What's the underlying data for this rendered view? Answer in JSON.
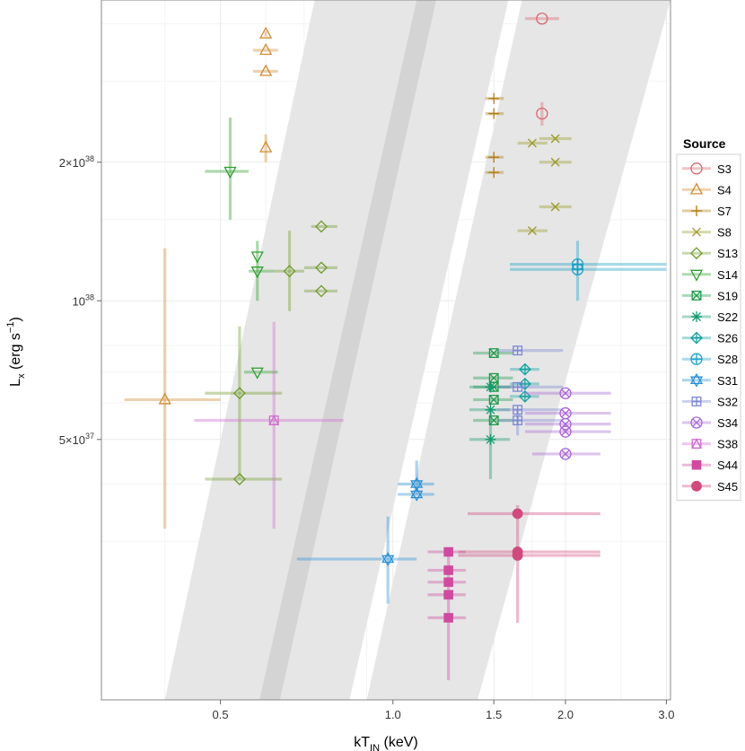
{
  "chart_data": {
    "type": "scatter",
    "title": "",
    "xlabel": {
      "main": "kT",
      "sub": "IN",
      "rest": " (keV)"
    },
    "ylabel": {
      "main": "L",
      "sub": "x",
      "rest": " (erg s",
      "sup": "−1",
      "close": ")"
    },
    "x_scale": "log",
    "y_scale": "log",
    "xlim": [
      0.31,
      3.05
    ],
    "ylim": [
      1.36e+37,
      4.5e+38
    ],
    "x_ticks": [
      {
        "value": 0.5,
        "label": "0.5"
      },
      {
        "value": 1.0,
        "label": "1.0"
      },
      {
        "value": 1.5,
        "label": "1.5"
      },
      {
        "value": 2.0,
        "label": "2.0"
      },
      {
        "value": 3.0,
        "label": "3.0"
      }
    ],
    "y_ticks": [
      {
        "value": 5e+37,
        "label": "5×10",
        "exp": "37"
      },
      {
        "value": 1e+38,
        "label": "10",
        "exp": "38"
      },
      {
        "value": 2e+38,
        "label": "2×10",
        "exp": "38"
      }
    ],
    "legend": {
      "title": "Source",
      "position": "right"
    },
    "bands": [
      {
        "name": "band-left-wide",
        "color": "#e6e6e6",
        "polygon": [
          [
            0.4,
            1.36e+37
          ],
          [
            0.84,
            1.36e+37
          ],
          [
            1.59,
            4.5e+38
          ],
          [
            0.73,
            4.5e+38
          ]
        ]
      },
      {
        "name": "band-left-dark",
        "color": "#d4d4d4",
        "polygon": [
          [
            0.585,
            1.36e+37
          ],
          [
            0.635,
            1.36e+37
          ],
          [
            1.19,
            4.5e+38
          ],
          [
            1.1,
            4.5e+38
          ]
        ]
      },
      {
        "name": "band-right-wide",
        "color": "#e6e6e6",
        "polygon": [
          [
            0.9,
            1.36e+37
          ],
          [
            1.405,
            1.36e+37
          ],
          [
            3.05,
            4.5e+38
          ],
          [
            1.68,
            4.5e+38
          ]
        ]
      }
    ],
    "series": [
      {
        "name": "S3",
        "color": "#d9656e",
        "marker": "circle",
        "points": [
          {
            "x": 1.82,
            "y": 4.1e+38,
            "xlo": 1.7,
            "xhi": 1.95,
            "ylo": 4.1e+38,
            "yhi": 4.1e+38
          },
          {
            "x": 1.82,
            "y": 2.55e+38,
            "xlo": 1.82,
            "xhi": 1.82,
            "ylo": 2.4e+38,
            "yhi": 2.7e+38
          }
        ]
      },
      {
        "name": "S4",
        "color": "#d08b30",
        "marker": "triangle-up",
        "points": [
          {
            "x": 0.6,
            "y": 3.8e+38,
            "xlo": 0.6,
            "xhi": 0.6,
            "ylo": 3.75e+38,
            "yhi": 3.85e+38
          },
          {
            "x": 0.6,
            "y": 3.5e+38,
            "xlo": 0.57,
            "xhi": 0.63,
            "ylo": 3.5e+38,
            "yhi": 3.5e+38
          },
          {
            "x": 0.6,
            "y": 3.15e+38,
            "xlo": 0.57,
            "xhi": 0.63,
            "ylo": 3.15e+38,
            "yhi": 3.15e+38
          },
          {
            "x": 0.6,
            "y": 2.15e+38,
            "xlo": 0.6,
            "xhi": 0.6,
            "ylo": 2e+38,
            "yhi": 2.3e+38
          },
          {
            "x": 0.4,
            "y": 6.1e+37,
            "xlo": 0.34,
            "xhi": 0.5,
            "ylo": 3.2e+37,
            "yhi": 1.3e+38
          }
        ]
      },
      {
        "name": "S7",
        "color": "#b07c14",
        "marker": "plus",
        "points": [
          {
            "x": 1.5,
            "y": 2.75e+38,
            "xlo": 1.45,
            "xhi": 1.56,
            "ylo": 2.75e+38,
            "yhi": 2.75e+38
          },
          {
            "x": 1.5,
            "y": 2.55e+38,
            "xlo": 1.45,
            "xhi": 1.56,
            "ylo": 2.55e+38,
            "yhi": 2.55e+38
          },
          {
            "x": 1.5,
            "y": 2.05e+38,
            "xlo": 1.45,
            "xhi": 1.56,
            "ylo": 2.05e+38,
            "yhi": 2.05e+38
          },
          {
            "x": 1.5,
            "y": 1.9e+38,
            "xlo": 1.45,
            "xhi": 1.56,
            "ylo": 1.9e+38,
            "yhi": 1.9e+38
          }
        ]
      },
      {
        "name": "S8",
        "color": "#9a9a26",
        "marker": "cross",
        "points": [
          {
            "x": 1.75,
            "y": 2.2e+38,
            "xlo": 1.65,
            "xhi": 1.86,
            "ylo": 2.2e+38,
            "yhi": 2.2e+38
          },
          {
            "x": 1.92,
            "y": 2.25e+38,
            "xlo": 1.8,
            "xhi": 2.05,
            "ylo": 2.25e+38,
            "yhi": 2.25e+38
          },
          {
            "x": 1.92,
            "y": 2e+38,
            "xlo": 1.8,
            "xhi": 2.05,
            "ylo": 2e+38,
            "yhi": 2e+38
          },
          {
            "x": 1.92,
            "y": 1.6e+38,
            "xlo": 1.8,
            "xhi": 2.05,
            "ylo": 1.6e+38,
            "yhi": 1.6e+38
          },
          {
            "x": 1.75,
            "y": 1.42e+38,
            "xlo": 1.65,
            "xhi": 1.86,
            "ylo": 1.42e+38,
            "yhi": 1.42e+38
          }
        ]
      },
      {
        "name": "S13",
        "color": "#6f9a2a",
        "marker": "diamond",
        "points": [
          {
            "x": 0.75,
            "y": 1.45e+38,
            "xlo": 0.72,
            "xhi": 0.8,
            "ylo": 1.45e+38,
            "yhi": 1.45e+38
          },
          {
            "x": 0.75,
            "y": 1.18e+38,
            "xlo": 0.7,
            "xhi": 0.8,
            "ylo": 1.18e+38,
            "yhi": 1.18e+38
          },
          {
            "x": 0.66,
            "y": 1.16e+38,
            "xlo": 0.62,
            "xhi": 0.7,
            "ylo": 9.5e+37,
            "yhi": 1.42e+38
          },
          {
            "x": 0.75,
            "y": 1.05e+38,
            "xlo": 0.7,
            "xhi": 0.8,
            "ylo": 1.05e+38,
            "yhi": 1.05e+38
          },
          {
            "x": 0.54,
            "y": 6.3e+37,
            "xlo": 0.47,
            "xhi": 0.64,
            "ylo": 4.1e+37,
            "yhi": 8.8e+37
          },
          {
            "x": 0.54,
            "y": 4.1e+37,
            "xlo": 0.47,
            "xhi": 0.64,
            "ylo": 4.1e+37,
            "yhi": 4.1e+37
          }
        ]
      },
      {
        "name": "S14",
        "color": "#2e9e2e",
        "marker": "triangle-down",
        "points": [
          {
            "x": 0.52,
            "y": 1.91e+38,
            "xlo": 0.47,
            "xhi": 0.56,
            "ylo": 1.5e+38,
            "yhi": 2.5e+38
          },
          {
            "x": 0.58,
            "y": 1.25e+38,
            "xlo": 0.58,
            "xhi": 0.58,
            "ylo": 1e+38,
            "yhi": 1.35e+38
          },
          {
            "x": 0.58,
            "y": 1.16e+38,
            "xlo": 0.56,
            "xhi": 0.62,
            "ylo": 1.16e+38,
            "yhi": 1.16e+38
          },
          {
            "x": 0.58,
            "y": 7e+37,
            "xlo": 0.55,
            "xhi": 0.63,
            "ylo": 7e+37,
            "yhi": 7e+37
          }
        ]
      },
      {
        "name": "S19",
        "color": "#1e9a4a",
        "marker": "square-x",
        "points": [
          {
            "x": 1.5,
            "y": 7.7e+37,
            "xlo": 1.38,
            "xhi": 1.62,
            "ylo": 7.7e+37,
            "yhi": 7.7e+37
          },
          {
            "x": 1.5,
            "y": 6.8e+37,
            "xlo": 1.38,
            "xhi": 1.62,
            "ylo": 6.8e+37,
            "yhi": 6.8e+37
          },
          {
            "x": 1.5,
            "y": 6.5e+37,
            "xlo": 1.38,
            "xhi": 1.62,
            "ylo": 6.5e+37,
            "yhi": 6.5e+37
          },
          {
            "x": 1.5,
            "y": 6.1e+37,
            "xlo": 1.38,
            "xhi": 1.62,
            "ylo": 6.1e+37,
            "yhi": 6.1e+37
          },
          {
            "x": 1.5,
            "y": 5.5e+37,
            "xlo": 1.38,
            "xhi": 1.62,
            "ylo": 5.5e+37,
            "yhi": 5.5e+37
          }
        ]
      },
      {
        "name": "S22",
        "color": "#139a6e",
        "marker": "asterisk",
        "points": [
          {
            "x": 1.48,
            "y": 6.5e+37,
            "xlo": 1.36,
            "xhi": 1.6,
            "ylo": 6.5e+37,
            "yhi": 6.5e+37
          },
          {
            "x": 1.48,
            "y": 5.8e+37,
            "xlo": 1.36,
            "xhi": 1.6,
            "ylo": 5.8e+37,
            "yhi": 5.8e+37
          },
          {
            "x": 1.48,
            "y": 5e+37,
            "xlo": 1.36,
            "xhi": 1.6,
            "ylo": 4.1e+37,
            "yhi": 5.8e+37
          }
        ]
      },
      {
        "name": "S26",
        "color": "#18a0a0",
        "marker": "diamond-plus",
        "points": [
          {
            "x": 1.7,
            "y": 7.1e+37,
            "xlo": 1.6,
            "xhi": 1.8,
            "ylo": 7.1e+37,
            "yhi": 7.1e+37
          },
          {
            "x": 1.7,
            "y": 6.6e+37,
            "xlo": 1.6,
            "xhi": 1.8,
            "ylo": 6.6e+37,
            "yhi": 6.6e+37
          },
          {
            "x": 1.7,
            "y": 6.2e+37,
            "xlo": 1.6,
            "xhi": 1.8,
            "ylo": 6.2e+37,
            "yhi": 6.2e+37
          }
        ]
      },
      {
        "name": "S28",
        "color": "#1aa0c8",
        "marker": "circle-plus",
        "points": [
          {
            "x": 2.1,
            "y": 1.2e+38,
            "xlo": 1.6,
            "xhi": 3.0,
            "ylo": 1e+38,
            "yhi": 1.35e+38
          },
          {
            "x": 2.1,
            "y": 1.17e+38,
            "xlo": 1.6,
            "xhi": 3.0,
            "ylo": 1.17e+38,
            "yhi": 1.17e+38
          }
        ]
      },
      {
        "name": "S31",
        "color": "#2a8fd6",
        "marker": "star-of-david",
        "points": [
          {
            "x": 1.1,
            "y": 4e+37,
            "xlo": 1.02,
            "xhi": 1.18,
            "ylo": 3.8e+37,
            "yhi": 4.5e+37
          },
          {
            "x": 1.1,
            "y": 3.8e+37,
            "xlo": 1.02,
            "xhi": 1.18,
            "ylo": 3.8e+37,
            "yhi": 3.8e+37
          },
          {
            "x": 0.98,
            "y": 2.75e+37,
            "xlo": 0.68,
            "xhi": 1.1,
            "ylo": 2.2e+37,
            "yhi": 3.4e+37
          }
        ]
      },
      {
        "name": "S32",
        "color": "#7b87d4",
        "marker": "square-plus",
        "points": [
          {
            "x": 1.65,
            "y": 7.8e+37,
            "xlo": 1.52,
            "xhi": 1.98,
            "ylo": 7.8e+37,
            "yhi": 7.8e+37
          },
          {
            "x": 1.65,
            "y": 6.5e+37,
            "xlo": 1.52,
            "xhi": 1.98,
            "ylo": 6.5e+37,
            "yhi": 6.5e+37
          },
          {
            "x": 1.65,
            "y": 5.8e+37,
            "xlo": 1.52,
            "xhi": 1.98,
            "ylo": 5.8e+37,
            "yhi": 5.8e+37
          },
          {
            "x": 1.65,
            "y": 5.5e+37,
            "xlo": 1.52,
            "xhi": 1.98,
            "ylo": 5.1e+37,
            "yhi": 5.8e+37
          }
        ]
      },
      {
        "name": "S34",
        "color": "#a865d4",
        "marker": "circle-x",
        "points": [
          {
            "x": 2.0,
            "y": 6.3e+37,
            "xlo": 1.7,
            "xhi": 2.4,
            "ylo": 6.3e+37,
            "yhi": 6.3e+37
          },
          {
            "x": 2.0,
            "y": 5.7e+37,
            "xlo": 1.7,
            "xhi": 2.4,
            "ylo": 5.7e+37,
            "yhi": 5.7e+37
          },
          {
            "x": 2.0,
            "y": 5.4e+37,
            "xlo": 1.7,
            "xhi": 2.4,
            "ylo": 5.4e+37,
            "yhi": 5.4e+37
          },
          {
            "x": 2.0,
            "y": 5.2e+37,
            "xlo": 1.7,
            "xhi": 2.4,
            "ylo": 5.2e+37,
            "yhi": 5.2e+37
          },
          {
            "x": 2.0,
            "y": 4.65e+37,
            "xlo": 1.75,
            "xhi": 2.3,
            "ylo": 4.65e+37,
            "yhi": 4.65e+37
          }
        ]
      },
      {
        "name": "S38",
        "color": "#d06ad0",
        "marker": "triangle-square",
        "points": [
          {
            "x": 0.62,
            "y": 5.5e+37,
            "xlo": 0.45,
            "xhi": 0.82,
            "ylo": 3.2e+37,
            "yhi": 9e+37
          }
        ]
      },
      {
        "name": "S44",
        "color": "#d04aa0",
        "marker": "square-filled",
        "points": [
          {
            "x": 1.25,
            "y": 2.85e+37,
            "xlo": 1.15,
            "xhi": 1.34,
            "ylo": 2.85e+37,
            "yhi": 2.85e+37
          },
          {
            "x": 1.25,
            "y": 2.6e+37,
            "xlo": 1.15,
            "xhi": 1.34,
            "ylo": 2.6e+37,
            "yhi": 2.6e+37
          },
          {
            "x": 1.25,
            "y": 2.45e+37,
            "xlo": 1.15,
            "xhi": 1.34,
            "ylo": 2.45e+37,
            "yhi": 2.45e+37
          },
          {
            "x": 1.25,
            "y": 2.3e+37,
            "xlo": 1.15,
            "xhi": 1.34,
            "ylo": 2.3e+37,
            "yhi": 2.3e+37
          },
          {
            "x": 1.25,
            "y": 2.05e+37,
            "xlo": 1.15,
            "xhi": 1.34,
            "ylo": 1.5e+37,
            "yhi": 2.8e+37
          }
        ]
      },
      {
        "name": "S45",
        "color": "#d04a7e",
        "marker": "circle-filled",
        "points": [
          {
            "x": 1.65,
            "y": 3.45e+37,
            "xlo": 1.35,
            "xhi": 2.3,
            "ylo": 3.45e+37,
            "yhi": 3.45e+37
          },
          {
            "x": 1.65,
            "y": 2.85e+37,
            "xlo": 1.3,
            "xhi": 2.3,
            "ylo": 2e+37,
            "yhi": 3.6e+37
          },
          {
            "x": 1.65,
            "y": 2.8e+37,
            "xlo": 1.3,
            "xhi": 2.3,
            "ylo": 2.8e+37,
            "yhi": 2.8e+37
          }
        ]
      }
    ]
  }
}
